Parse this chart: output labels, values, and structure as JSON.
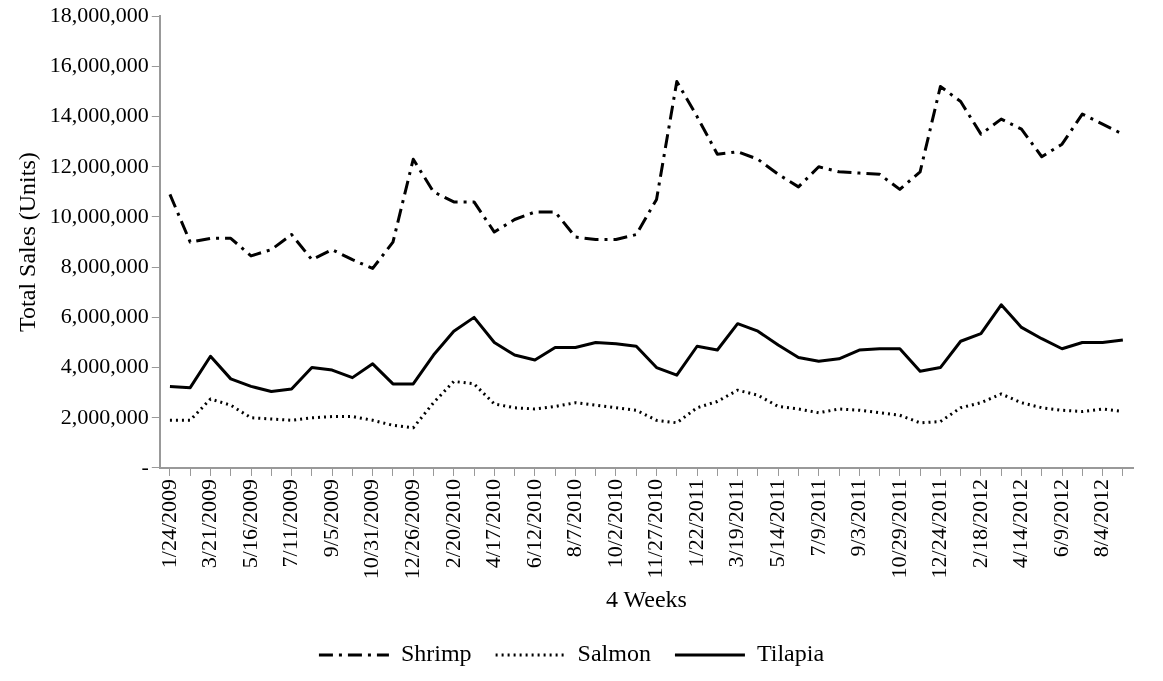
{
  "chart_data": {
    "type": "line",
    "xlabel": "4 Weeks",
    "ylabel": "Total Sales (Units)",
    "categories": [
      "1/24/2009",
      null,
      "3/21/2009",
      null,
      "5/16/2009",
      null,
      "7/11/2009",
      null,
      "9/5/2009",
      null,
      "10/31/2009",
      null,
      "12/26/2009",
      null,
      "2/20/2010",
      null,
      "4/17/2010",
      null,
      "6/12/2010",
      null,
      "8/7/2010",
      null,
      "10/2/2010",
      null,
      "11/27/2010",
      null,
      "1/22/2011",
      null,
      "3/19/2011",
      null,
      "5/14/2011",
      null,
      "7/9/2011",
      null,
      "9/3/2011",
      null,
      "10/29/2011",
      null,
      "12/24/2011",
      null,
      "2/18/2012",
      null,
      "4/14/2012",
      null,
      "6/9/2012",
      null,
      "8/4/2012",
      null
    ],
    "series": [
      {
        "name": "Shrimp",
        "color": "#000000",
        "line_style": "dashdot",
        "values": [
          10900000,
          9000000,
          9150000,
          9150000,
          8450000,
          8700000,
          9300000,
          8300000,
          8700000,
          8300000,
          7950000,
          9000000,
          12300000,
          11000000,
          10600000,
          10600000,
          9400000,
          9900000,
          10200000,
          10200000,
          9200000,
          9100000,
          9100000,
          9300000,
          10700000,
          15400000,
          14000000,
          12500000,
          12600000,
          12300000,
          11700000,
          11200000,
          12000000,
          11800000,
          11750000,
          11700000,
          11100000,
          11800000,
          15200000,
          14600000,
          13300000,
          13900000,
          13500000,
          12400000,
          12900000,
          14100000,
          13700000,
          13300000
        ]
      },
      {
        "name": "Salmon",
        "color": "#000000",
        "line_style": "dotted",
        "values": [
          1900000,
          1900000,
          2750000,
          2500000,
          2000000,
          1950000,
          1900000,
          2000000,
          2050000,
          2050000,
          1900000,
          1700000,
          1600000,
          2600000,
          3450000,
          3350000,
          2550000,
          2400000,
          2350000,
          2450000,
          2600000,
          2500000,
          2400000,
          2300000,
          1900000,
          1800000,
          2400000,
          2650000,
          3100000,
          2900000,
          2450000,
          2350000,
          2200000,
          2350000,
          2300000,
          2200000,
          2100000,
          1800000,
          1850000,
          2400000,
          2600000,
          2950000,
          2600000,
          2400000,
          2300000,
          2250000,
          2350000,
          2250000
        ]
      },
      {
        "name": "Tilapia",
        "color": "#000000",
        "line_style": "solid",
        "values": [
          3250000,
          3200000,
          4450000,
          3550000,
          3250000,
          3050000,
          3150000,
          4000000,
          3900000,
          3600000,
          4150000,
          3350000,
          3350000,
          4500000,
          5450000,
          6000000,
          5000000,
          4500000,
          4300000,
          4800000,
          4800000,
          5000000,
          4950000,
          4850000,
          4000000,
          3700000,
          4850000,
          4700000,
          5750000,
          5450000,
          4900000,
          4400000,
          4250000,
          4350000,
          4700000,
          4750000,
          4750000,
          3850000,
          4000000,
          5050000,
          5350000,
          6500000,
          5600000,
          5150000,
          4750000,
          5000000,
          5000000,
          5100000
        ]
      }
    ],
    "ylim": [
      0,
      18000000
    ],
    "yticks": [
      {
        "value": 0,
        "label": "-"
      },
      {
        "value": 2000000,
        "label": "2,000,000"
      },
      {
        "value": 4000000,
        "label": "4,000,000"
      },
      {
        "value": 6000000,
        "label": "6,000,000"
      },
      {
        "value": 8000000,
        "label": "8,000,000"
      },
      {
        "value": 10000000,
        "label": "10,000,000"
      },
      {
        "value": 12000000,
        "label": "12,000,000"
      },
      {
        "value": 14000000,
        "label": "14,000,000"
      },
      {
        "value": 16000000,
        "label": "16,000,000"
      },
      {
        "value": 18000000,
        "label": "18,000,000"
      }
    ],
    "grid": false,
    "legend": "bottom",
    "marker": "none"
  }
}
